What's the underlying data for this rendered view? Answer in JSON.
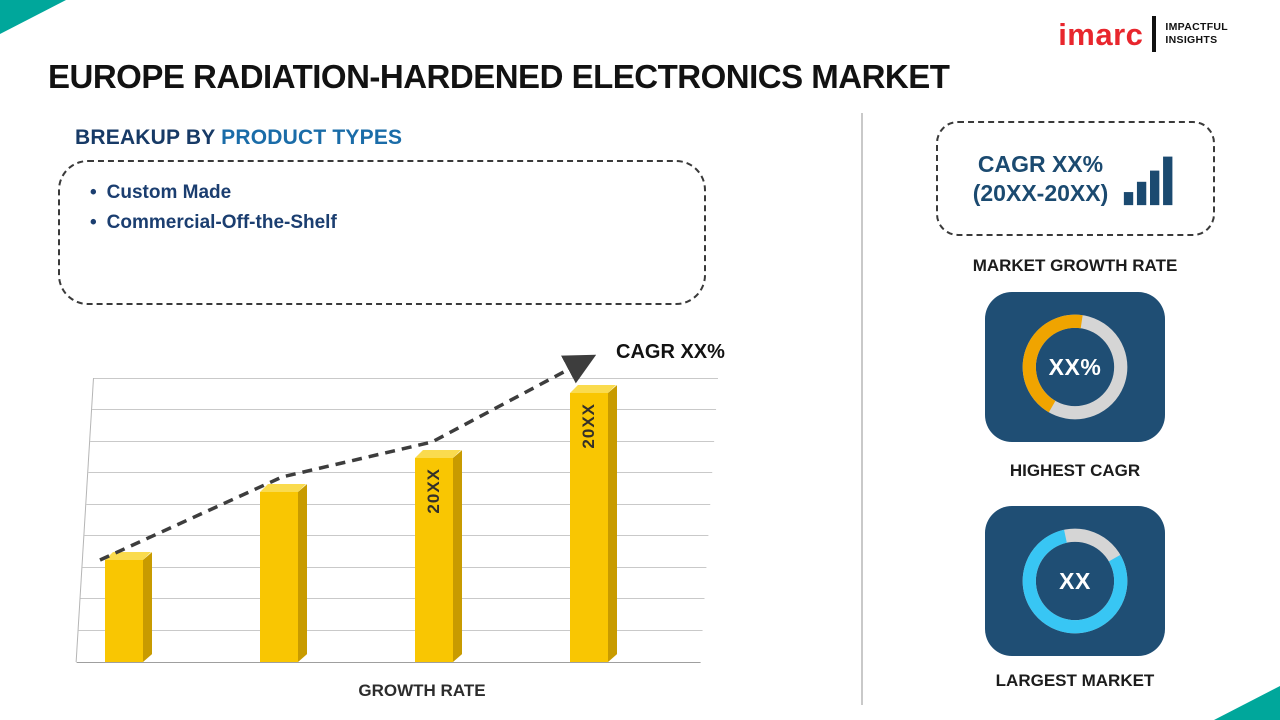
{
  "theme": {
    "teal": "#00a79b",
    "navy": "#1f4e74",
    "red": "#e8262d",
    "bar_yellow": "#f9c602"
  },
  "logo": {
    "brand": "imarc",
    "tagline1": "IMPACTFUL",
    "tagline2": "INSIGHTS"
  },
  "title": "EUROPE RADIATION-HARDENED ELECTRONICS MARKET",
  "breakup": {
    "heading_prefix": "BREAKUP BY ",
    "heading_highlight": "PRODUCT TYPES",
    "items": [
      "Custom Made",
      "Commercial-Off-the-Shelf"
    ]
  },
  "chart_data": [
    {
      "type": "bar",
      "title": "",
      "xlabel": "GROWTH RATE",
      "ylabel": "",
      "categories": [
        "",
        "",
        "20XX",
        "20XX"
      ],
      "bar_labels": [
        "",
        "",
        "20XX",
        "20XX"
      ],
      "values": [
        27,
        45,
        54,
        71
      ],
      "ylim": [
        0,
        75
      ],
      "grid": true,
      "bar_color": "#f9c602",
      "annotation": "CAGR XX%",
      "trend": "dashed rising arrow"
    },
    {
      "type": "pie",
      "variant": "donut",
      "label": "HIGHEST CAGR",
      "center_text": "XX%",
      "percent": 44,
      "color": "#f0a400",
      "track_color": "#d5d5d5",
      "start_deg": 120
    },
    {
      "type": "pie",
      "variant": "donut",
      "label": "LARGEST MARKET",
      "center_text": "XX",
      "percent": 80,
      "color": "#38c6f4",
      "track_color": "#d5d5d5",
      "start_deg": -30
    }
  ],
  "right": {
    "card": {
      "line1": "CAGR XX%",
      "line2": "(20XX-20XX)"
    },
    "growth_label": "MARKET GROWTH RATE"
  }
}
